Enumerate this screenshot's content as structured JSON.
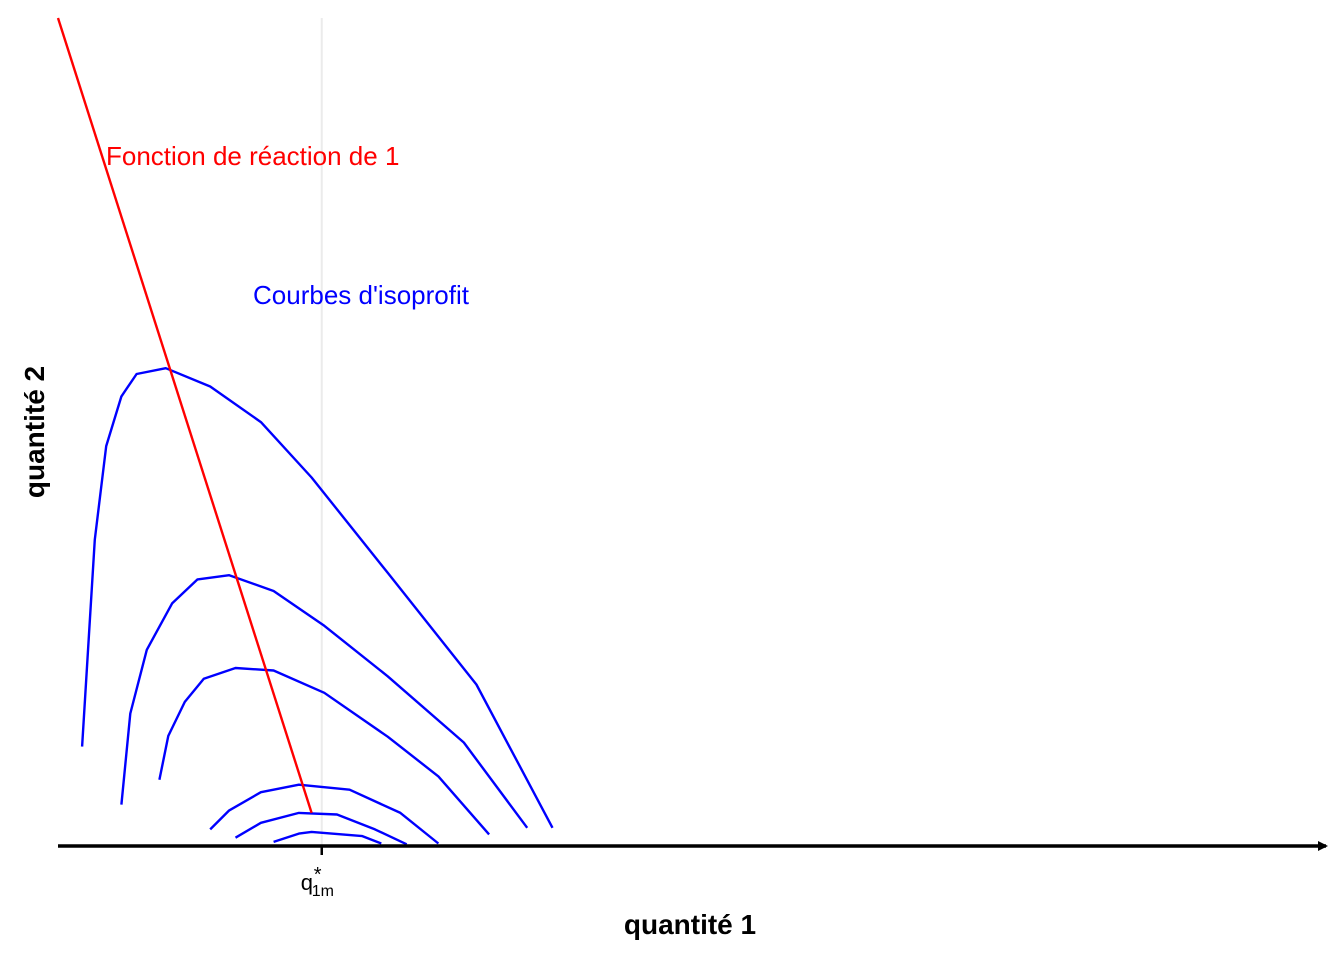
{
  "chart_data": {
    "type": "line",
    "title": "",
    "xlabel": "quantité 1",
    "ylabel": "quantité 2",
    "xlim": [
      0,
      10
    ],
    "ylim": [
      0,
      10
    ],
    "grid": false,
    "vertical_reference_x": 2.08,
    "ticks": [
      {
        "x": 2.08,
        "base": "q",
        "subscript": "1m",
        "superscript": "*"
      }
    ],
    "colors": {
      "reaction": "#ff0000",
      "isoprofit": "#0000ff",
      "axis": "#000000",
      "reference": "#ebebeb"
    },
    "reaction_function": {
      "label": "Fonction de réaction de 1",
      "points": [
        [
          0.0,
          10.0
        ],
        [
          2.0,
          0.4
        ]
      ]
    },
    "isoprofit_curves": {
      "label": "Courbes d'isoprofit",
      "curves": [
        [
          [
            0.19,
            1.2
          ],
          [
            0.29,
            3.7
          ],
          [
            0.38,
            4.83
          ],
          [
            0.5,
            5.43
          ],
          [
            0.62,
            5.7
          ],
          [
            0.85,
            5.77
          ],
          [
            1.2,
            5.55
          ],
          [
            1.6,
            5.12
          ],
          [
            2.0,
            4.45
          ],
          [
            2.6,
            3.3
          ],
          [
            3.3,
            1.95
          ],
          [
            3.9,
            0.22
          ]
        ],
        [
          [
            0.5,
            0.5
          ],
          [
            0.57,
            1.6
          ],
          [
            0.7,
            2.37
          ],
          [
            0.9,
            2.93
          ],
          [
            1.1,
            3.22
          ],
          [
            1.35,
            3.27
          ],
          [
            1.7,
            3.08
          ],
          [
            2.1,
            2.66
          ],
          [
            2.6,
            2.05
          ],
          [
            3.2,
            1.25
          ],
          [
            3.7,
            0.22
          ]
        ],
        [
          [
            0.8,
            0.8
          ],
          [
            0.87,
            1.33
          ],
          [
            1.0,
            1.74
          ],
          [
            1.15,
            2.02
          ],
          [
            1.4,
            2.15
          ],
          [
            1.7,
            2.12
          ],
          [
            2.1,
            1.85
          ],
          [
            2.6,
            1.32
          ],
          [
            3.0,
            0.84
          ],
          [
            3.4,
            0.14
          ]
        ],
        [
          [
            1.2,
            0.2
          ],
          [
            1.35,
            0.43
          ],
          [
            1.6,
            0.65
          ],
          [
            1.9,
            0.74
          ],
          [
            2.3,
            0.68
          ],
          [
            2.7,
            0.4
          ],
          [
            3.0,
            0.03
          ]
        ],
        [
          [
            1.4,
            0.1
          ],
          [
            1.6,
            0.28
          ],
          [
            1.9,
            0.4
          ],
          [
            2.2,
            0.38
          ],
          [
            2.5,
            0.2
          ],
          [
            2.75,
            0.02
          ]
        ],
        [
          [
            1.7,
            0.05
          ],
          [
            1.9,
            0.15
          ],
          [
            2.0,
            0.17
          ],
          [
            2.4,
            0.12
          ],
          [
            2.55,
            0.03
          ]
        ]
      ]
    }
  }
}
